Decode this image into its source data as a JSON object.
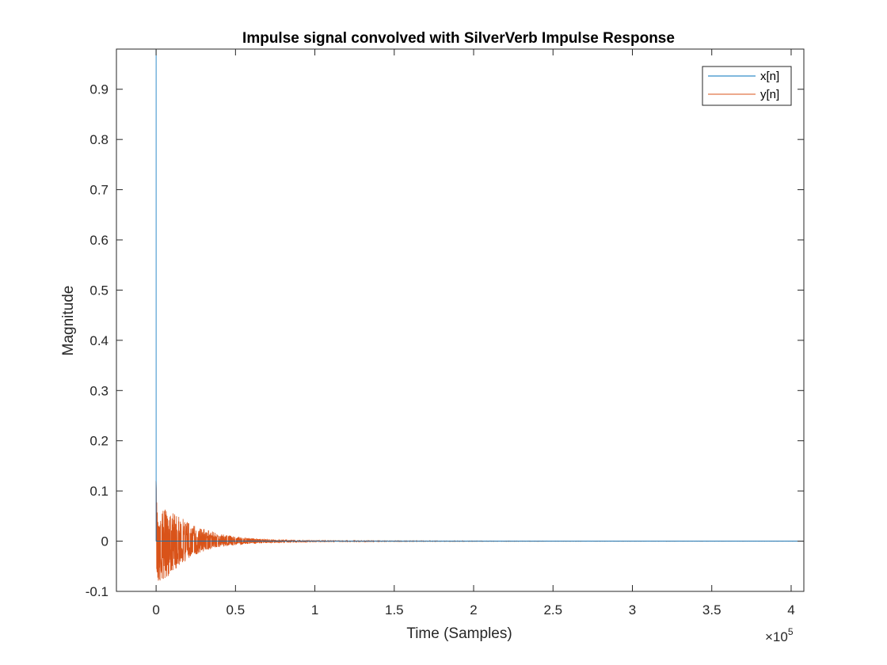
{
  "chart_data": {
    "type": "line",
    "title": "Impulse signal convolved with SilverVerb Impulse Response",
    "xlabel": "Time (Samples)",
    "ylabel": "Magnitude",
    "x_exponent_label": "×10",
    "x_exponent_power": "5",
    "xlim": [
      -25000,
      408000
    ],
    "ylim": [
      -0.1,
      0.98
    ],
    "xticks": [
      0,
      0.5,
      1,
      1.5,
      2,
      2.5,
      3,
      3.5,
      4
    ],
    "xtick_labels": [
      "0",
      "0.5",
      "1",
      "1.5",
      "2",
      "2.5",
      "3",
      "3.5",
      "4"
    ],
    "yticks": [
      -0.1,
      0,
      0.1,
      0.2,
      0.3,
      0.4,
      0.5,
      0.6,
      0.7,
      0.8,
      0.9
    ],
    "ytick_labels": [
      "-0.1",
      "0",
      "0.1",
      "0.2",
      "0.3",
      "0.4",
      "0.5",
      "0.6",
      "0.7",
      "0.8",
      "0.9"
    ],
    "grid": false,
    "legend_position": "top-right",
    "series": [
      {
        "name": "x[n]",
        "color": "#0072BD",
        "description": "unit impulse",
        "x": [
          0,
          0,
          0
        ],
        "y": [
          0,
          0.98,
          0
        ]
      },
      {
        "name": "y[n]",
        "color": "#D95319",
        "description": "decaying reverb tail, envelope approximation",
        "envelope": {
          "x": [
            0,
            1000,
            5000,
            10000,
            15000,
            20000,
            30000,
            40000,
            50000,
            60000,
            75000,
            90000,
            110000,
            150000,
            250000,
            408000
          ],
          "upper": [
            0.12,
            0.06,
            0.065,
            0.06,
            0.05,
            0.04,
            0.025,
            0.015,
            0.009,
            0.006,
            0.003,
            0.002,
            0.001,
            0.0005,
            0.0002,
            0.0001
          ],
          "lower": [
            -0.085,
            -0.085,
            -0.08,
            -0.06,
            -0.05,
            -0.035,
            -0.02,
            -0.012,
            -0.008,
            -0.005,
            -0.003,
            -0.002,
            -0.001,
            -0.0005,
            -0.0002,
            -0.0001
          ]
        }
      }
    ]
  }
}
